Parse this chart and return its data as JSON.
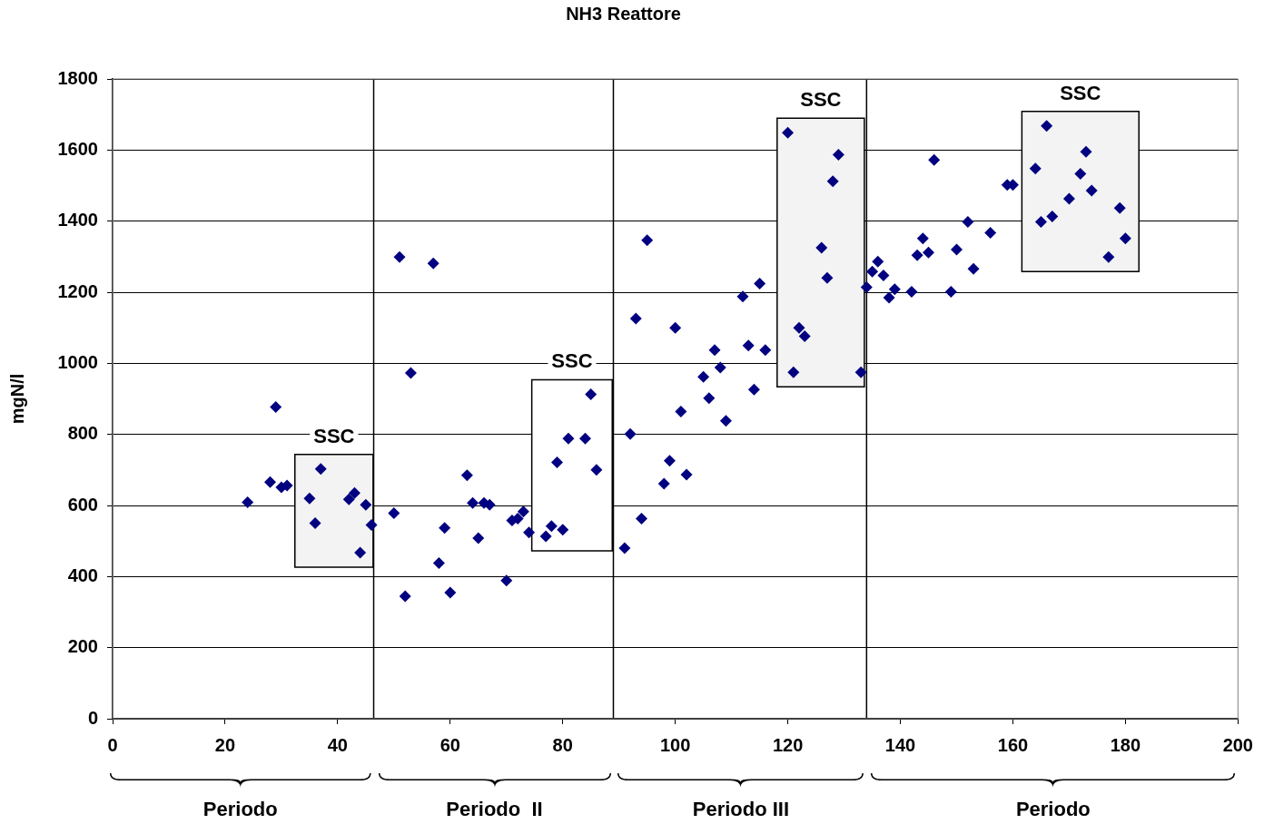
{
  "chart_data": {
    "type": "scatter",
    "title": "NH3 Reattore",
    "ylabel": "mgN/l",
    "xlim": [
      0,
      200
    ],
    "xticks": [
      0,
      20,
      40,
      60,
      80,
      100,
      120,
      140,
      160,
      180,
      200
    ],
    "ylim": [
      0,
      1800
    ],
    "yticks": [
      0,
      200,
      400,
      600,
      800,
      1000,
      1200,
      1400,
      1600,
      1800
    ],
    "grid": "y",
    "marker": "diamond",
    "legend": false,
    "series": [
      {
        "color": "#000080",
        "x": [
          24,
          28,
          29,
          30,
          31,
          35,
          36,
          37,
          42,
          43,
          44,
          45,
          46,
          50,
          51,
          52,
          53,
          57,
          58,
          59,
          60,
          63,
          64,
          65,
          66,
          67,
          70,
          71,
          72,
          73,
          74,
          77,
          78,
          79,
          80,
          81,
          84,
          85,
          86,
          91,
          92,
          93,
          94,
          95,
          98,
          99,
          100,
          101,
          102,
          105,
          106,
          107,
          108,
          109,
          112,
          113,
          114,
          115,
          116,
          120,
          121,
          122,
          123,
          126,
          127,
          128,
          129,
          133,
          134,
          135,
          136,
          137,
          138,
          139,
          142,
          143,
          144,
          145,
          146,
          149,
          150,
          152,
          153,
          156,
          159,
          160,
          164,
          165,
          166,
          167,
          170,
          172,
          173,
          174,
          177,
          179,
          180
        ],
        "values": [
          609,
          666,
          877,
          651,
          656,
          620,
          550,
          703,
          617,
          635,
          467,
          602,
          545,
          578,
          1299,
          345,
          973,
          1281,
          438,
          537,
          355,
          685,
          607,
          508,
          607,
          602,
          389,
          558,
          563,
          583,
          524,
          513,
          542,
          721,
          532,
          788,
          788,
          913,
          700,
          480,
          801,
          1126,
          563,
          1346,
          661,
          726,
          1100,
          864,
          687,
          962,
          902,
          1037,
          988,
          838,
          1188,
          1050,
          926,
          1224,
          1037,
          1649,
          975,
          1100,
          1076,
          1325,
          1240,
          1512,
          1587,
          975,
          1214,
          1258,
          1286,
          1247,
          1185,
          1208,
          1201,
          1304,
          1351,
          1312,
          1572,
          1201,
          1320,
          1398,
          1266,
          1367,
          1502,
          1502,
          1548,
          1398,
          1668,
          1413,
          1463,
          1533,
          1595,
          1486,
          1299,
          1437,
          1351
        ]
      }
    ],
    "ref_lines": [
      {
        "axis": "x",
        "value": 46.4,
        "color": "#000000"
      },
      {
        "axis": "x",
        "value": 89,
        "color": "#000000"
      },
      {
        "axis": "x",
        "value": 134,
        "color": "#000000"
      }
    ],
    "bands": [
      {
        "axis": "x",
        "from": 32.4,
        "to": 46.3,
        "label": "SSC",
        "color": "#f3f3f3"
      },
      {
        "axis": "x",
        "from": 74.5,
        "to": 88.8,
        "label": "SSC",
        "color": "#ffffff"
      },
      {
        "axis": "x",
        "from": 118.1,
        "to": 133.6,
        "label": "SSC",
        "color": "#f3f3f3"
      },
      {
        "axis": "x",
        "from": 161.6,
        "to": 182.4,
        "label": "SSC",
        "color": "#f3f3f3"
      }
    ],
    "annotations": [
      "Periodo",
      "Periodo  II",
      "Periodo III",
      "Periodo"
    ]
  }
}
